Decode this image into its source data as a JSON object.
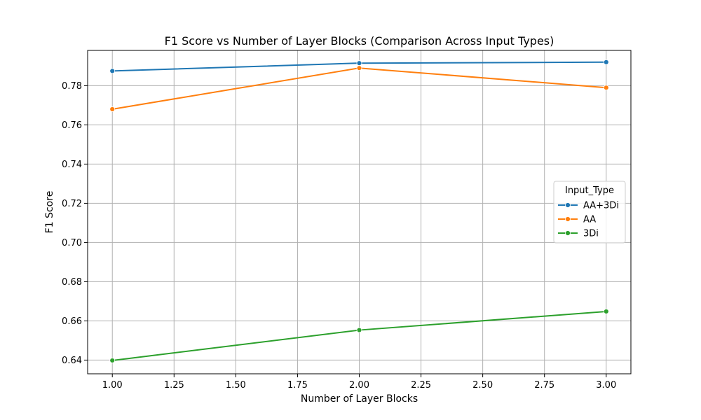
{
  "chart_data": {
    "type": "line",
    "title": "F1 Score vs Number of Layer Blocks (Comparison Across Input Types)",
    "xlabel": "Number of Layer Blocks",
    "ylabel": "F1 Score",
    "xlim": [
      0.9,
      3.1
    ],
    "ylim": [
      0.633,
      0.798
    ],
    "xticks": [
      1.0,
      1.25,
      1.5,
      1.75,
      2.0,
      2.25,
      2.5,
      2.75,
      3.0
    ],
    "xtick_labels": [
      "1.00",
      "1.25",
      "1.50",
      "1.75",
      "2.00",
      "2.25",
      "2.50",
      "2.75",
      "3.00"
    ],
    "yticks": [
      0.64,
      0.66,
      0.68,
      0.7,
      0.72,
      0.74,
      0.76,
      0.78
    ],
    "ytick_labels": [
      "0.64",
      "0.66",
      "0.68",
      "0.70",
      "0.72",
      "0.74",
      "0.76",
      "0.78"
    ],
    "grid": true,
    "legend": {
      "title": "Input_Type",
      "position": "center-right"
    },
    "series": [
      {
        "name": "AA+3Di",
        "color": "#1f77b4",
        "x": [
          1,
          2,
          3
        ],
        "y": [
          0.7875,
          0.7915,
          0.792
        ]
      },
      {
        "name": "AA",
        "color": "#ff7f0e",
        "x": [
          1,
          2,
          3
        ],
        "y": [
          0.768,
          0.789,
          0.779
        ]
      },
      {
        "name": "3Di",
        "color": "#2ca02c",
        "x": [
          1,
          2,
          3
        ],
        "y": [
          0.6398,
          0.6553,
          0.6648
        ]
      }
    ]
  }
}
